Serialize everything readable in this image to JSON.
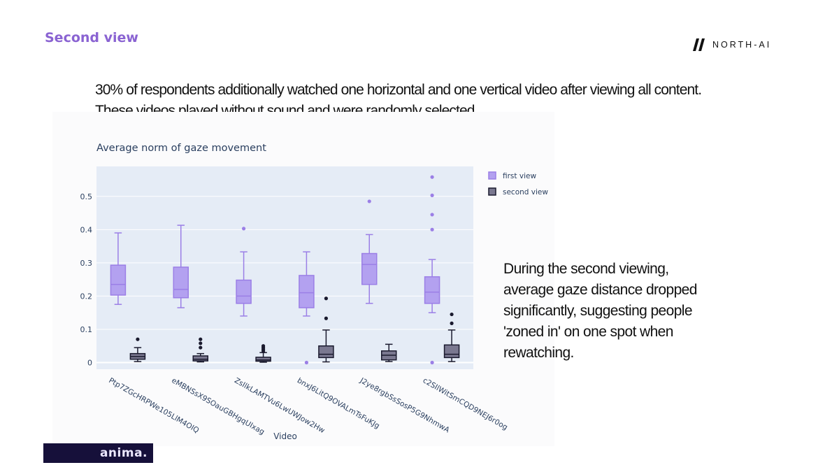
{
  "slide": {
    "title": "Second view",
    "brand": "NORTH-AI",
    "intro_line1": "30% of respondents additionally watched one horizontal and one vertical video after viewing all content.",
    "intro_line2": "These videos played without sound and were randomly selected.",
    "takeaway": "During the second viewing, average gaze distance dropped significantly, suggesting people 'zoned in' on one spot when rewatching.",
    "footer_logo": "anima."
  },
  "chart_data": {
    "type": "box",
    "title": "Average norm of gaze movement",
    "xlabel": "Video",
    "ylabel": "",
    "ylim": [
      -0.02,
      0.59
    ],
    "yticks": [
      0,
      0.1,
      0.2,
      0.3,
      0.4,
      0.5
    ],
    "ytick_labels": [
      "0",
      "0.1",
      "0.2",
      "0.3",
      "0.4",
      "0.5"
    ],
    "grid": true,
    "legend_position": "top-right",
    "colors": {
      "plot_bg": "#e5ecf6",
      "first": "#9b7fe6",
      "first_fill": "#b3a1f0",
      "second": "#1a1a2e",
      "second_fill": "#7a7890"
    },
    "categories": [
      "Ptp7ZGcHRPWe105LlM4OIQ",
      "eMBNSsX9SOauGBHgqUIxag",
      "ZsIlkLAMTVu6LwUWJow2Hw",
      "bnxJ6LitQ9OVALmTsFuKJg",
      "J2ye8rgbSsSosP5G9NhmwA",
      "c2SIlWitSmCQD9NEJ6r0og"
    ],
    "series": [
      {
        "name": "first view",
        "boxes": [
          {
            "min": 0.175,
            "q1": 0.203,
            "median": 0.235,
            "q3": 0.293,
            "max": 0.39,
            "outliers": []
          },
          {
            "min": 0.165,
            "q1": 0.195,
            "median": 0.22,
            "q3": 0.287,
            "max": 0.413,
            "outliers": []
          },
          {
            "min": 0.14,
            "q1": 0.178,
            "median": 0.2,
            "q3": 0.248,
            "max": 0.333,
            "outliers": [
              0.403
            ]
          },
          {
            "min": 0.14,
            "q1": 0.165,
            "median": 0.21,
            "q3": 0.262,
            "max": 0.333,
            "outliers": [
              0
            ]
          },
          {
            "min": 0.178,
            "q1": 0.235,
            "median": 0.295,
            "q3": 0.328,
            "max": 0.385,
            "outliers": [
              0.485
            ]
          },
          {
            "min": 0.15,
            "q1": 0.178,
            "median": 0.212,
            "q3": 0.258,
            "max": 0.31,
            "outliers": [
              0.4,
              0.445,
              0.503,
              0.558,
              0
            ]
          }
        ]
      },
      {
        "name": "second view",
        "boxes": [
          {
            "min": 0.003,
            "q1": 0.01,
            "median": 0.018,
            "q3": 0.027,
            "max": 0.045,
            "outliers": [
              0.07
            ]
          },
          {
            "min": 0.002,
            "q1": 0.005,
            "median": 0.01,
            "q3": 0.02,
            "max": 0.027,
            "outliers": [
              0.045,
              0.058,
              0.07
            ]
          },
          {
            "min": 0.001,
            "q1": 0.004,
            "median": 0.008,
            "q3": 0.016,
            "max": 0.03,
            "outliers": [
              0.035,
              0.04,
              0.045,
              0.05
            ]
          },
          {
            "min": 0.002,
            "q1": 0.015,
            "median": 0.025,
            "q3": 0.05,
            "max": 0.098,
            "outliers": [
              0.133,
              0.193
            ]
          },
          {
            "min": 0.003,
            "q1": 0.008,
            "median": 0.022,
            "q3": 0.035,
            "max": 0.055,
            "outliers": []
          },
          {
            "min": 0.003,
            "q1": 0.015,
            "median": 0.025,
            "q3": 0.053,
            "max": 0.098,
            "outliers": [
              0.118,
              0.145
            ]
          }
        ]
      }
    ]
  }
}
